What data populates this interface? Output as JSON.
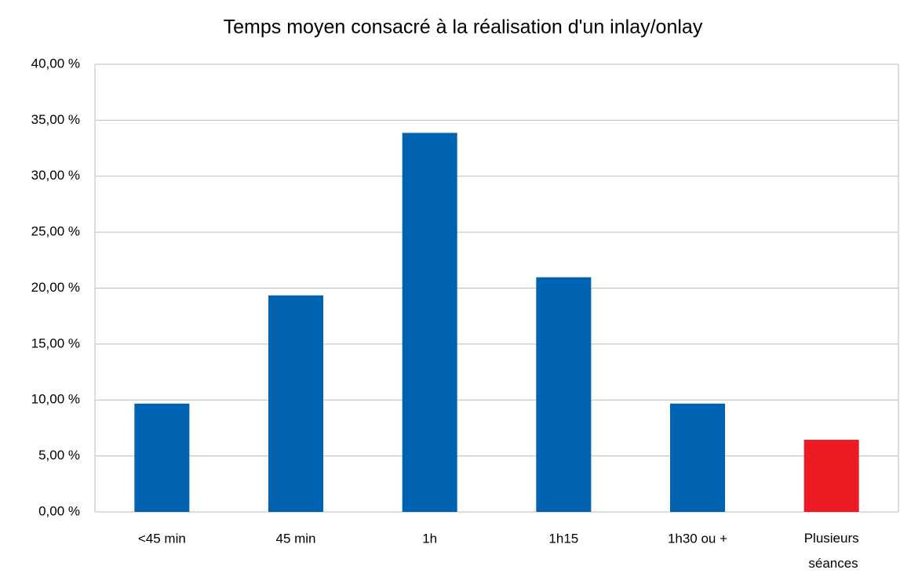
{
  "chart_data": {
    "type": "bar",
    "title": "Temps moyen consacré à la réalisation d'un inlay/onlay",
    "categories": [
      "<45 min",
      "45 min",
      "1h",
      "1h15",
      "1h30 ou +",
      "Plusieurs séances"
    ],
    "values": [
      9.68,
      19.35,
      33.87,
      20.97,
      9.68,
      6.45
    ],
    "colors": [
      "#0063b1",
      "#0063b1",
      "#0063b1",
      "#0063b1",
      "#0063b1",
      "#ed1c24"
    ],
    "ylim": [
      0,
      40
    ],
    "yticks": [
      {
        "value": 0,
        "label": "0,00 %"
      },
      {
        "value": 5,
        "label": "5,00 %"
      },
      {
        "value": 10,
        "label": "10,00 %"
      },
      {
        "value": 15,
        "label": "15,00 %"
      },
      {
        "value": 20,
        "label": "20,00 %"
      },
      {
        "value": 25,
        "label": "25,00 %"
      },
      {
        "value": 30,
        "label": "30,00 %"
      },
      {
        "value": 35,
        "label": "35,00 %"
      },
      {
        "value": 40,
        "label": "40,00 %"
      }
    ],
    "grid": true
  }
}
